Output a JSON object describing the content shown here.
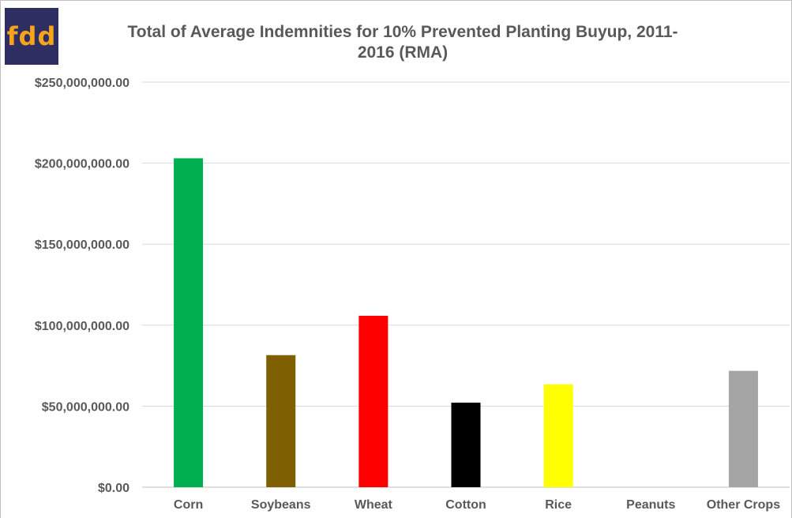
{
  "logo": {
    "text": "fdd",
    "bg": "#2e2e63",
    "fg": "#f7a41d"
  },
  "chart_data": {
    "type": "bar",
    "title_line1": "Total of Average Indemnities for 10% Prevented Planting Buyup, 2011-",
    "title_line2": "2016 (RMA)",
    "categories": [
      "Corn",
      "Soybeans",
      "Wheat",
      "Cotton",
      "Rice",
      "Peanuts",
      "Other Crops"
    ],
    "values": [
      203000000,
      81500000,
      105800000,
      52200000,
      63500000,
      0,
      71800000
    ],
    "colors": [
      "#00b050",
      "#7f6000",
      "#ff0000",
      "#000000",
      "#ffff00",
      "#ffffff",
      "#a5a5a5"
    ],
    "yticks": [
      "$0.00",
      "$50,000,000.00",
      "$100,000,000.00",
      "$150,000,000.00",
      "$200,000,000.00",
      "$250,000,000.00"
    ],
    "ylim": [
      0,
      250000000
    ],
    "grid": true,
    "legend": "none"
  }
}
